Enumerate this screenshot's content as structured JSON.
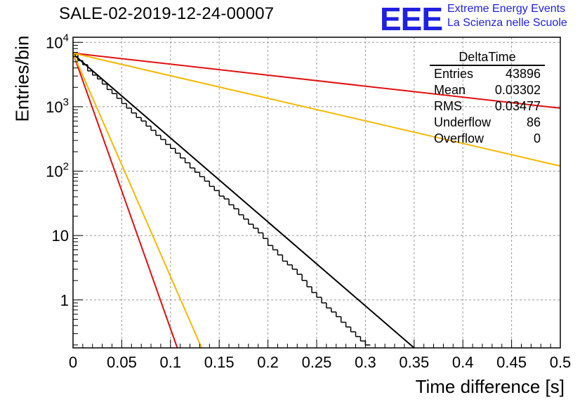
{
  "plot": {
    "title": "SALE-02-2019-12-24-00007",
    "xlabel": "Time difference [s]",
    "ylabel": "Entries/bin"
  },
  "logo": {
    "mark": "EEE",
    "line1": "Extreme Energy Events",
    "line2": "La Scienza nelle Scuole",
    "color": "#2020e0"
  },
  "stats": {
    "title": "DeltaTime",
    "rows": [
      {
        "label": "Entries",
        "value": "43896"
      },
      {
        "label": "Mean",
        "value": "0.03302"
      },
      {
        "label": "RMS",
        "value": "0.03477"
      },
      {
        "label": "Underflow",
        "value": "86"
      },
      {
        "label": "Overflow",
        "value": "0"
      }
    ]
  },
  "chart_data": {
    "type": "histogram",
    "x_range": [
      0,
      0.5
    ],
    "y_range": [
      0.18,
      12000
    ],
    "y_scale": "log",
    "grid": true,
    "x_ticks": [
      "0",
      "0.05",
      "0.1",
      "0.15",
      "0.2",
      "0.25",
      "0.3",
      "0.35",
      "0.4",
      "0.45",
      "0.5"
    ],
    "y_ticks": [
      {
        "value": 1,
        "base": "1",
        "sup": ""
      },
      {
        "value": 10,
        "base": "10",
        "sup": ""
      },
      {
        "value": 100,
        "base": "10",
        "sup": "2"
      },
      {
        "value": 1000,
        "base": "10",
        "sup": "3"
      },
      {
        "value": 10000,
        "base": "10",
        "sup": "4"
      }
    ],
    "histogram": {
      "color": "#000000",
      "bin_width": 0.005,
      "bins": [
        {
          "x": 0.0,
          "y": 6500
        },
        {
          "x": 0.005,
          "y": 5200
        },
        {
          "x": 0.01,
          "y": 4500
        },
        {
          "x": 0.015,
          "y": 3600
        },
        {
          "x": 0.02,
          "y": 3100
        },
        {
          "x": 0.025,
          "y": 2700
        },
        {
          "x": 0.03,
          "y": 2250
        },
        {
          "x": 0.035,
          "y": 1850
        },
        {
          "x": 0.04,
          "y": 1600
        },
        {
          "x": 0.045,
          "y": 1350
        },
        {
          "x": 0.05,
          "y": 1120
        },
        {
          "x": 0.055,
          "y": 950
        },
        {
          "x": 0.06,
          "y": 800
        },
        {
          "x": 0.065,
          "y": 680
        },
        {
          "x": 0.07,
          "y": 600
        },
        {
          "x": 0.075,
          "y": 500
        },
        {
          "x": 0.08,
          "y": 430
        },
        {
          "x": 0.085,
          "y": 360
        },
        {
          "x": 0.09,
          "y": 310
        },
        {
          "x": 0.095,
          "y": 260
        },
        {
          "x": 0.1,
          "y": 225
        },
        {
          "x": 0.105,
          "y": 190
        },
        {
          "x": 0.11,
          "y": 160
        },
        {
          "x": 0.115,
          "y": 135
        },
        {
          "x": 0.12,
          "y": 112
        },
        {
          "x": 0.125,
          "y": 96
        },
        {
          "x": 0.13,
          "y": 82
        },
        {
          "x": 0.135,
          "y": 70
        },
        {
          "x": 0.14,
          "y": 58
        },
        {
          "x": 0.145,
          "y": 50
        },
        {
          "x": 0.15,
          "y": 41
        },
        {
          "x": 0.155,
          "y": 37
        },
        {
          "x": 0.16,
          "y": 30
        },
        {
          "x": 0.165,
          "y": 26
        },
        {
          "x": 0.17,
          "y": 21
        },
        {
          "x": 0.175,
          "y": 18
        },
        {
          "x": 0.18,
          "y": 15
        },
        {
          "x": 0.185,
          "y": 13
        },
        {
          "x": 0.19,
          "y": 11
        },
        {
          "x": 0.195,
          "y": 9
        },
        {
          "x": 0.2,
          "y": 7
        },
        {
          "x": 0.205,
          "y": 6
        },
        {
          "x": 0.21,
          "y": 5
        },
        {
          "x": 0.215,
          "y": 4
        },
        {
          "x": 0.22,
          "y": 3.5
        },
        {
          "x": 0.225,
          "y": 3
        },
        {
          "x": 0.23,
          "y": 2.5
        },
        {
          "x": 0.235,
          "y": 2
        },
        {
          "x": 0.24,
          "y": 1.6
        },
        {
          "x": 0.245,
          "y": 1.3
        },
        {
          "x": 0.25,
          "y": 1.1
        },
        {
          "x": 0.255,
          "y": 0.9
        },
        {
          "x": 0.26,
          "y": 0.75
        },
        {
          "x": 0.265,
          "y": 0.65
        },
        {
          "x": 0.27,
          "y": 0.55
        },
        {
          "x": 0.275,
          "y": 0.45
        },
        {
          "x": 0.28,
          "y": 0.38
        },
        {
          "x": 0.285,
          "y": 0.32
        },
        {
          "x": 0.29,
          "y": 0.27
        },
        {
          "x": 0.295,
          "y": 0.23
        },
        {
          "x": 0.3,
          "y": 0.2
        }
      ]
    },
    "fits": [
      {
        "color": "#000000",
        "x": [
          0,
          0.35
        ],
        "y": [
          6600,
          0.18
        ]
      },
      {
        "color": "#e01010",
        "x": [
          0,
          0.5
        ],
        "y": [
          6800,
          950
        ]
      },
      {
        "color": "#f5b800",
        "x": [
          0,
          0.5
        ],
        "y": [
          6800,
          120
        ]
      },
      {
        "color": "#e01010",
        "x": [
          0,
          0.107
        ],
        "y": [
          6800,
          0.18
        ]
      },
      {
        "color": "#f5b800",
        "x": [
          0,
          0.132
        ],
        "y": [
          6800,
          0.18
        ]
      }
    ]
  }
}
